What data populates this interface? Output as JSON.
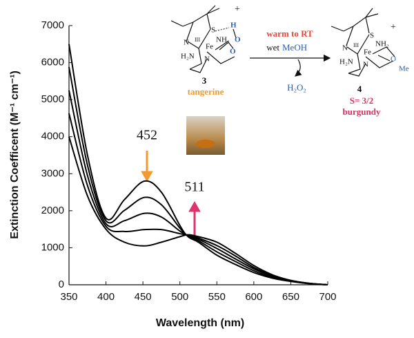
{
  "chart_data": {
    "type": "line",
    "x_label": "Wavelength (nm)",
    "y_label": "Extinction Coefficent (M⁻¹ cm⁻¹)",
    "x": [
      350,
      375,
      400,
      425,
      452,
      475,
      500,
      511,
      525,
      550,
      575,
      600,
      625,
      650,
      675,
      700
    ],
    "series": [
      {
        "color": "#000000",
        "values": [
          6500,
          3500,
          1800,
          2300,
          2800,
          2500,
          1600,
          1300,
          1150,
          800,
          550,
          330,
          180,
          90,
          30,
          0
        ]
      },
      {
        "color": "#000000",
        "values": [
          5880,
          3230,
          1730,
          2010,
          2360,
          2160,
          1530,
          1310,
          1190,
          890,
          630,
          380,
          200,
          100,
          30,
          0
        ]
      },
      {
        "color": "#000000",
        "values": [
          5250,
          2950,
          1650,
          1730,
          1930,
          1830,
          1450,
          1330,
          1230,
          980,
          700,
          430,
          230,
          110,
          35,
          0
        ]
      },
      {
        "color": "#000000",
        "values": [
          4630,
          2680,
          1580,
          1440,
          1490,
          1490,
          1380,
          1340,
          1260,
          1060,
          780,
          470,
          250,
          110,
          40,
          0
        ]
      },
      {
        "color": "#000000",
        "values": [
          4000,
          2400,
          1500,
          1150,
          1050,
          1150,
          1300,
          1350,
          1300,
          1150,
          850,
          520,
          270,
          120,
          40,
          0
        ]
      }
    ],
    "xlim": [
      350,
      700
    ],
    "ylim": [
      0,
      7000
    ],
    "xticks": [
      350,
      400,
      450,
      500,
      550,
      600,
      650,
      700
    ],
    "yticks": [
      0,
      1000,
      2000,
      3000,
      4000,
      5000,
      6000,
      7000
    ],
    "annotations": [
      {
        "text": "452",
        "color": "#f39a2e"
      },
      {
        "text": "511",
        "color": "#e0336b"
      }
    ],
    "scheme": {
      "compound_3": "3",
      "color_3": "tangerine",
      "condition_1": "warm to RT",
      "condition_2a": "wet",
      "condition_2b": "MeOH",
      "byproduct": "H₂O₂",
      "compound_4": "4",
      "spin": "S= 3/2",
      "color_4": "burgundy",
      "atoms_3": [
        "S",
        "H",
        "O",
        "O",
        "N",
        "III",
        "Fe",
        "NH₂",
        "H₂N",
        "N",
        "+"
      ],
      "atoms_4": [
        "S",
        "N",
        "III",
        "Fe",
        "NH₂",
        "O",
        "Me",
        "H₂N",
        "N",
        "+"
      ]
    }
  }
}
